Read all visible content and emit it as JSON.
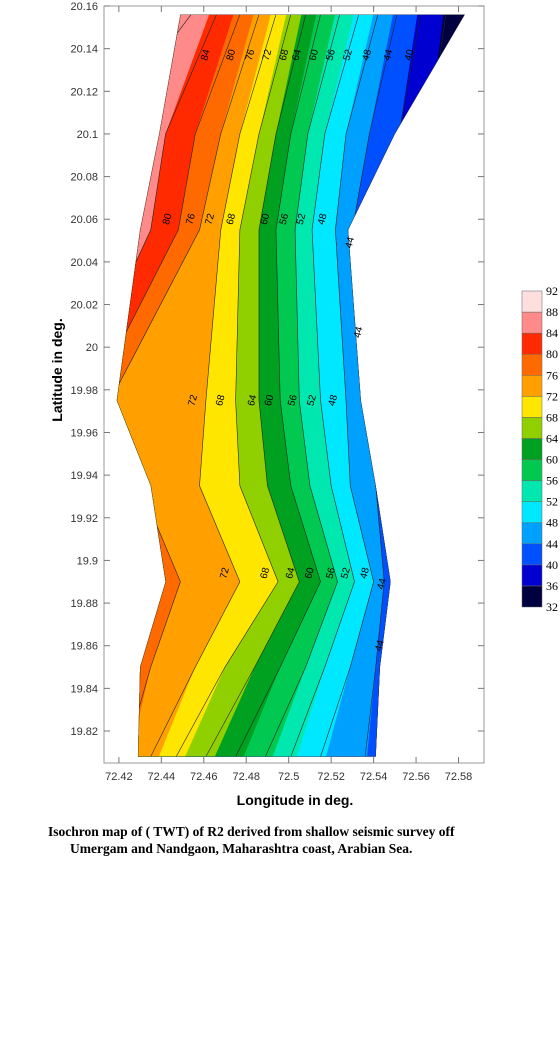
{
  "chart_data": {
    "type": "contour",
    "xlabel": "Longitude in deg.",
    "ylabel": "Latitude in deg.",
    "caption": [
      "Isochron map of ( TWT)  of R2 derived from shallow seismic survey off",
      "Umergam and Nandgaon, Maharashtra coast, Arabian Sea."
    ],
    "xlim": [
      72.413,
      72.592
    ],
    "ylim": [
      19.805,
      20.16
    ],
    "xticks": [
      72.42,
      72.44,
      72.46,
      72.48,
      72.5,
      72.52,
      72.54,
      72.56,
      72.58
    ],
    "yticks": [
      19.82,
      19.84,
      19.86,
      19.88,
      19.9,
      19.92,
      19.94,
      19.96,
      19.98,
      20,
      20.02,
      20.04,
      20.06,
      20.08,
      20.1,
      20.12,
      20.14,
      20.16
    ],
    "lat": [
      20.156,
      20.1,
      20.055,
      19.975,
      19.935,
      19.89,
      19.85,
      19.808
    ],
    "domain_left": [
      72.449,
      72.439,
      72.43,
      72.419,
      72.435,
      72.442,
      72.43,
      72.429
    ],
    "domain_right": [
      72.583,
      72.55,
      72.528,
      72.534,
      72.541,
      72.548,
      72.543,
      72.541
    ],
    "contours": [
      {
        "level": 36,
        "lon": [
          72.574,
          72.566,
          72.562,
          72.566,
          72.566,
          72.566,
          72.566,
          72.566
        ]
      },
      {
        "level": 40,
        "lon": [
          72.562,
          72.552,
          72.543,
          72.552,
          72.552,
          72.557,
          72.552,
          72.552
        ]
      },
      {
        "level": 44,
        "lon": [
          72.551,
          72.538,
          72.53,
          72.538,
          72.541,
          72.545,
          72.541,
          72.536
        ]
      },
      {
        "level": 48,
        "lon": [
          72.542,
          72.527,
          72.522,
          72.527,
          72.529,
          72.54,
          72.529,
          72.515
        ]
      },
      {
        "level": 52,
        "lon": [
          72.533,
          72.517,
          72.511,
          72.515,
          72.52,
          72.531,
          72.517,
          72.501
        ]
      },
      {
        "level": 56,
        "lon": [
          72.524,
          72.509,
          72.503,
          72.505,
          72.51,
          72.523,
          72.508,
          72.489
        ]
      },
      {
        "level": 60,
        "lon": [
          72.515,
          72.501,
          72.494,
          72.496,
          72.501,
          72.515,
          72.496,
          72.475
        ]
      },
      {
        "level": 64,
        "lon": [
          72.508,
          72.494,
          72.486,
          72.486,
          72.49,
          72.505,
          72.484,
          72.461
        ]
      },
      {
        "level": 68,
        "lon": [
          72.501,
          72.486,
          72.477,
          72.475,
          72.477,
          72.495,
          72.47,
          72.447
        ]
      },
      {
        "level": 72,
        "lon": [
          72.494,
          72.477,
          72.468,
          72.461,
          72.458,
          72.477,
          72.456,
          72.435
        ]
      },
      {
        "level": 76,
        "lon": [
          72.486,
          72.468,
          72.458,
          72.416,
          72.43,
          72.449,
          72.435,
          72.423
        ]
      },
      {
        "level": 80,
        "lon": [
          72.477,
          72.456,
          72.448,
          72.407,
          72.419,
          72.43,
          72.423,
          72.416
        ]
      },
      {
        "level": 84,
        "lon": [
          72.466,
          72.442,
          72.435,
          72.398,
          72.412,
          72.421,
          72.416,
          72.409
        ]
      },
      {
        "level": 88,
        "lon": [
          72.454,
          72.412,
          72.416,
          72.393,
          72.402,
          72.412,
          72.407,
          72.402
        ]
      }
    ],
    "contour_labels": [
      {
        "level": 84,
        "lon": 72.461,
        "lat": 20.137
      },
      {
        "level": 80,
        "lon": 72.473,
        "lat": 20.137
      },
      {
        "level": 76,
        "lon": 72.482,
        "lat": 20.137
      },
      {
        "level": 72,
        "lon": 72.49,
        "lat": 20.137
      },
      {
        "level": 68,
        "lon": 72.498,
        "lat": 20.137
      },
      {
        "level": 64,
        "lon": 72.504,
        "lat": 20.137
      },
      {
        "level": 60,
        "lon": 72.512,
        "lat": 20.137
      },
      {
        "level": 56,
        "lon": 72.52,
        "lat": 20.137
      },
      {
        "level": 52,
        "lon": 72.528,
        "lat": 20.137
      },
      {
        "level": 48,
        "lon": 72.537,
        "lat": 20.137
      },
      {
        "level": 44,
        "lon": 72.547,
        "lat": 20.137
      },
      {
        "level": 40,
        "lon": 72.557,
        "lat": 20.137
      },
      {
        "level": 80,
        "lon": 72.443,
        "lat": 20.06
      },
      {
        "level": 76,
        "lon": 72.454,
        "lat": 20.06
      },
      {
        "level": 72,
        "lon": 72.463,
        "lat": 20.06
      },
      {
        "level": 68,
        "lon": 72.473,
        "lat": 20.06
      },
      {
        "level": 60,
        "lon": 72.489,
        "lat": 20.06
      },
      {
        "level": 56,
        "lon": 72.498,
        "lat": 20.06
      },
      {
        "level": 52,
        "lon": 72.506,
        "lat": 20.06
      },
      {
        "level": 48,
        "lon": 72.516,
        "lat": 20.06
      },
      {
        "level": 44,
        "lon": 72.529,
        "lat": 20.049
      },
      {
        "level": 44,
        "lon": 72.533,
        "lat": 20.007
      },
      {
        "level": 72,
        "lon": 72.455,
        "lat": 19.975
      },
      {
        "level": 68,
        "lon": 72.468,
        "lat": 19.975
      },
      {
        "level": 64,
        "lon": 72.483,
        "lat": 19.975
      },
      {
        "level": 60,
        "lon": 72.491,
        "lat": 19.975
      },
      {
        "level": 56,
        "lon": 72.502,
        "lat": 19.975
      },
      {
        "level": 52,
        "lon": 72.511,
        "lat": 19.975
      },
      {
        "level": 48,
        "lon": 72.521,
        "lat": 19.975
      },
      {
        "level": 72,
        "lon": 72.47,
        "lat": 19.894
      },
      {
        "level": 68,
        "lon": 72.489,
        "lat": 19.894
      },
      {
        "level": 64,
        "lon": 72.501,
        "lat": 19.894
      },
      {
        "level": 60,
        "lon": 72.51,
        "lat": 19.894
      },
      {
        "level": 56,
        "lon": 72.52,
        "lat": 19.894
      },
      {
        "level": 52,
        "lon": 72.527,
        "lat": 19.894
      },
      {
        "level": 48,
        "lon": 72.536,
        "lat": 19.894
      },
      {
        "level": 44,
        "lon": 72.544,
        "lat": 19.889
      },
      {
        "level": 44,
        "lon": 72.543,
        "lat": 19.86
      }
    ],
    "colorbar": {
      "levels": [
        32,
        36,
        40,
        44,
        48,
        52,
        56,
        60,
        64,
        68,
        72,
        76,
        80,
        84,
        88,
        92
      ],
      "colors": [
        "#000040",
        "#0000d0",
        "#0050ff",
        "#00a0ff",
        "#00e8ff",
        "#00e8b0",
        "#00c850",
        "#00a020",
        "#90d000",
        "#ffe600",
        "#ffa000",
        "#ff6a00",
        "#ff2a00",
        "#ff8a8a",
        "#ffdede"
      ]
    }
  }
}
